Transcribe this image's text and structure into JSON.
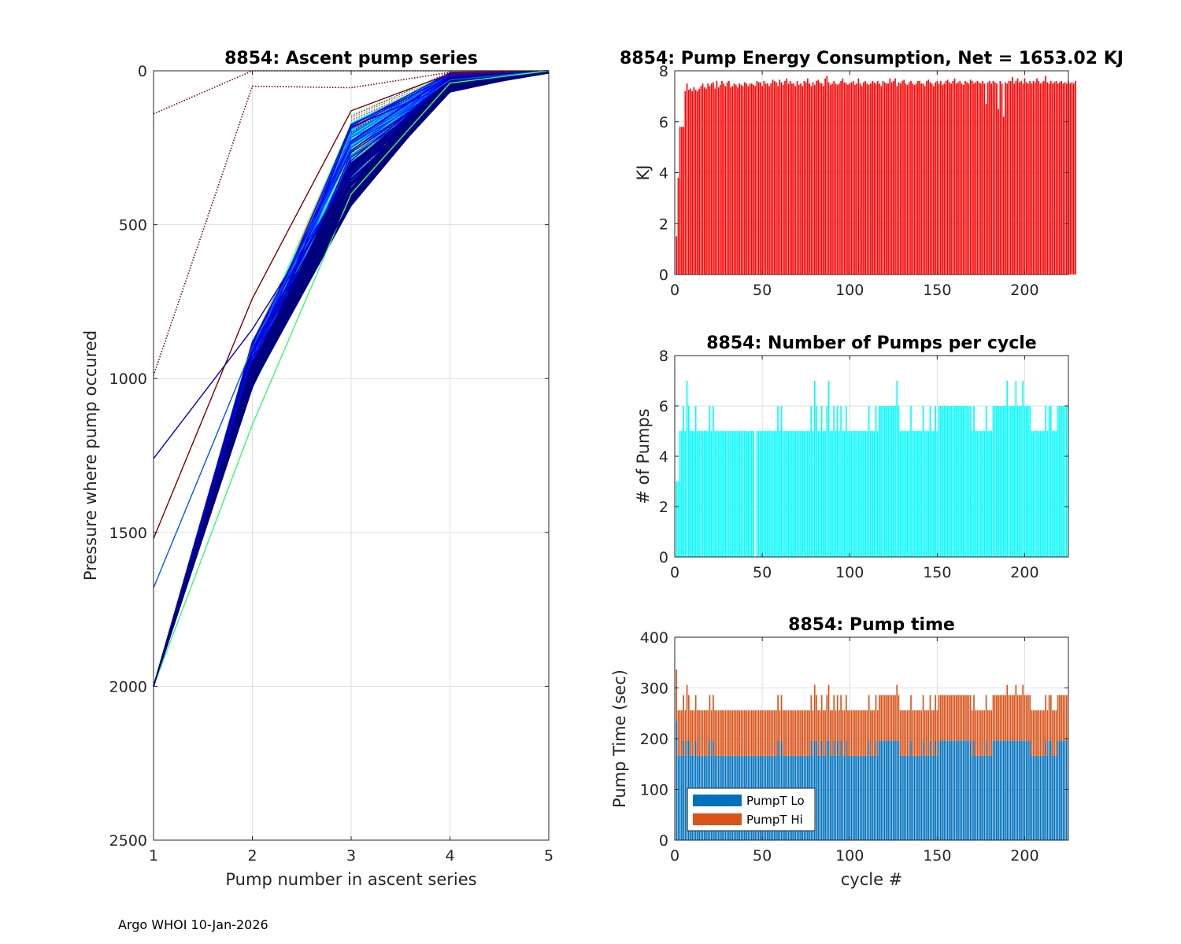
{
  "footer": "Argo WHOI 10-Jan-2026",
  "chart_data": [
    {
      "id": "ascent",
      "type": "line",
      "title": "8854: Ascent pump series",
      "xlabel": "Pump number in ascent series",
      "ylabel": "Pressure where pump occured",
      "xlim": [
        1,
        5
      ],
      "ylim": [
        0,
        2500
      ],
      "y_reversed": true,
      "xticks": [
        1,
        2,
        3,
        4,
        5
      ],
      "yticks": [
        0,
        500,
        1000,
        1500,
        2000,
        2500
      ],
      "grid": true,
      "colormap": "jet",
      "series_count": 224,
      "representative_series": [
        {
          "x": [
            1,
            2,
            3,
            4,
            5
          ],
          "y": [
            140,
            0,
            0,
            0,
            0
          ],
          "style": "dotted",
          "color": "#7f0000"
        },
        {
          "x": [
            1,
            2,
            3,
            4,
            5
          ],
          "y": [
            990,
            50,
            55,
            5,
            0
          ],
          "style": "dotted",
          "color": "#7f0000"
        },
        {
          "x": [
            1,
            2,
            3,
            4,
            5
          ],
          "y": [
            1520,
            740,
            130,
            10,
            0
          ],
          "style": "solid",
          "color": "#7f0000"
        },
        {
          "x": [
            1,
            2,
            3,
            4,
            5
          ],
          "y": [
            1260,
            840,
            330,
            20,
            0
          ],
          "style": "solid",
          "color": "#0000cc"
        },
        {
          "x": [
            1,
            2,
            3,
            4,
            5
          ],
          "y": [
            1680,
            900,
            250,
            30,
            0
          ],
          "style": "solid",
          "color": "#0055ff"
        },
        {
          "x": [
            1,
            2,
            3,
            4,
            5
          ],
          "y": [
            2000,
            1150,
            400,
            40,
            0
          ],
          "style": "solid",
          "color": "#33ff66"
        },
        {
          "x": [
            1,
            2,
            3,
            4,
            5
          ],
          "y": [
            2000,
            1020,
            420,
            60,
            5
          ],
          "style": "solid",
          "color": "#00007f"
        }
      ]
    },
    {
      "id": "energy",
      "type": "bar",
      "title": "8854: Pump Energy Consumption,  Net = 1653.02 KJ",
      "xlabel": "",
      "ylabel": "KJ",
      "xlim": [
        0,
        225
      ],
      "ylim": [
        0,
        8
      ],
      "xticks": [
        0,
        50,
        100,
        150,
        200
      ],
      "yticks": [
        0,
        2,
        4,
        6,
        8
      ],
      "color": "#ff0000",
      "grid": true,
      "values": [
        1.5,
        3.8,
        5.8,
        5.8,
        5.8,
        7.2,
        7.5,
        7.25,
        7.3,
        7.2,
        7.35,
        7.25,
        7.2,
        7.3,
        7.4,
        7.5,
        7.35,
        7.3,
        7.5,
        7.4,
        7.5,
        7.55,
        7.3,
        7.6,
        7.35,
        7.45,
        7.6,
        7.5,
        7.4,
        7.55,
        7.6,
        7.35,
        7.4,
        7.5,
        7.45,
        7.35,
        7.5,
        7.45,
        7.4,
        7.55,
        7.5,
        7.4,
        7.5,
        7.5,
        7.45,
        7.4,
        7.6,
        7.55,
        7.55,
        7.4,
        7.6,
        7.5,
        7.5,
        7.4,
        7.5,
        7.65,
        7.6,
        7.55,
        7.4,
        7.65,
        7.55,
        7.45,
        7.6,
        7.7,
        7.5,
        7.6,
        7.5,
        7.5,
        7.4,
        7.6,
        7.45,
        7.5,
        7.4,
        7.6,
        7.55,
        7.7,
        7.5,
        7.4,
        7.55,
        7.45,
        7.6,
        7.65,
        7.55,
        7.5,
        7.4,
        7.7,
        7.8,
        7.55,
        7.45,
        7.5,
        7.6,
        7.5,
        7.45,
        7.5,
        7.6,
        7.7,
        7.55,
        7.5,
        7.45,
        7.5,
        7.55,
        7.6,
        7.45,
        7.5,
        7.7,
        7.5,
        7.4,
        7.55,
        7.6,
        7.5,
        7.45,
        7.5,
        7.6,
        7.55,
        7.5,
        7.6,
        7.5,
        7.4,
        7.6,
        7.55,
        7.5,
        7.5,
        7.7,
        7.55,
        7.6,
        7.7,
        7.4,
        7.55,
        7.5,
        7.6,
        7.65,
        7.5,
        7.45,
        7.55,
        7.6,
        7.5,
        7.45,
        7.5,
        7.6,
        7.6,
        7.5,
        7.5,
        7.4,
        7.6,
        7.65,
        7.55,
        7.5,
        7.4,
        7.55,
        7.6,
        7.5,
        7.6,
        7.45,
        7.5,
        7.6,
        7.65,
        7.55,
        7.5,
        7.6,
        7.7,
        7.5,
        7.55,
        7.6,
        7.5,
        7.45,
        7.6,
        7.55,
        7.5,
        7.65,
        7.6,
        7.5,
        7.55,
        7.6,
        7.55,
        7.5,
        7.6,
        7.5,
        6.7,
        7.55,
        7.6,
        7.5,
        7.6,
        7.55,
        7.5,
        6.5,
        7.6,
        7.5,
        6.2,
        7.55,
        7.5,
        7.6,
        7.6,
        7.75,
        7.5,
        7.6,
        7.7,
        7.55,
        7.6,
        7.5,
        7.7,
        7.55,
        7.5,
        7.6,
        7.5,
        7.6,
        7.55,
        7.7,
        7.6,
        7.5,
        7.55,
        7.6,
        7.8,
        7.55,
        7.5,
        7.6,
        7.5,
        7.55,
        7.6,
        7.5,
        7.55,
        7.6,
        7.5,
        7.55,
        7.5,
        7.6,
        7.5,
        7.55,
        7.5,
        7.6
      ]
    },
    {
      "id": "npumps",
      "type": "bar",
      "title": "8854: Number of Pumps per cycle",
      "xlabel": "",
      "ylabel": "# of Pumps",
      "xlim": [
        0,
        225
      ],
      "ylim": [
        0,
        8
      ],
      "xticks": [
        0,
        50,
        100,
        150,
        200
      ],
      "yticks": [
        0,
        2,
        4,
        6,
        8
      ],
      "color": "#00ffff",
      "grid": true,
      "values": [
        3,
        3,
        5,
        5,
        6,
        5,
        7,
        6,
        5,
        5,
        5,
        6,
        5,
        5,
        5,
        5,
        5,
        5,
        5,
        6,
        5,
        6,
        5,
        5,
        5,
        5,
        5,
        5,
        5,
        5,
        5,
        5,
        5,
        5,
        5,
        5,
        5,
        5,
        5,
        5,
        5,
        5,
        5,
        5,
        5,
        0,
        5,
        5,
        5,
        5,
        5,
        5,
        5,
        5,
        5,
        5,
        5,
        5,
        6,
        5,
        6,
        5,
        5,
        5,
        5,
        5,
        5,
        5,
        5,
        5,
        5,
        5,
        5,
        5,
        5,
        5,
        5,
        6,
        5,
        7,
        6,
        5,
        5,
        6,
        5,
        5,
        6,
        7,
        5,
        5,
        6,
        5,
        6,
        5,
        6,
        5,
        5,
        6,
        5,
        5,
        5,
        5,
        5,
        5,
        5,
        5,
        5,
        5,
        5,
        5,
        6,
        5,
        5,
        5,
        6,
        5,
        6,
        6,
        6,
        6,
        6,
        6,
        6,
        6,
        6,
        6,
        7,
        6,
        5,
        5,
        5,
        5,
        5,
        5,
        6,
        5,
        5,
        5,
        5,
        5,
        5,
        6,
        5,
        5,
        5,
        6,
        5,
        5,
        6,
        5,
        6,
        6,
        6,
        6,
        6,
        6,
        6,
        6,
        6,
        6,
        6,
        6,
        6,
        6,
        6,
        6,
        6,
        6,
        6,
        5,
        6,
        5,
        5,
        5,
        5,
        5,
        5,
        6,
        5,
        5,
        5,
        6,
        6,
        6,
        6,
        6,
        6,
        6,
        6,
        7,
        6,
        6,
        6,
        6,
        7,
        6,
        6,
        6,
        7,
        6,
        6,
        6,
        6,
        5,
        5,
        5,
        5,
        5,
        5,
        5,
        5,
        6,
        5,
        6,
        6,
        5,
        5,
        5,
        6,
        6,
        6,
        6,
        6,
        6
      ]
    },
    {
      "id": "pumptime",
      "type": "bar",
      "stacked": true,
      "title": "8854: Pump time",
      "xlabel": "cycle #",
      "ylabel": "Pump Time (sec)",
      "xlim": [
        0,
        225
      ],
      "ylim": [
        0,
        400
      ],
      "xticks": [
        0,
        50,
        100,
        150,
        200
      ],
      "yticks": [
        0,
        100,
        200,
        300,
        400
      ],
      "grid": true,
      "legend": {
        "position": "bottom-left",
        "entries": [
          "PumpT Lo",
          "PumpT Hi"
        ]
      },
      "series": [
        {
          "name": "PumpT Lo",
          "color": "#0072bd",
          "value_rule": "196 on cycles with 6-7 pumps, else 166; cycle 1 = 236"
        },
        {
          "name": "PumpT Hi",
          "color": "#d95319",
          "value_rule": "total 256 for 5 pumps, 286 for 6 pumps, 306 for 7 pumps; cycle 1 total = 336"
        }
      ]
    }
  ]
}
